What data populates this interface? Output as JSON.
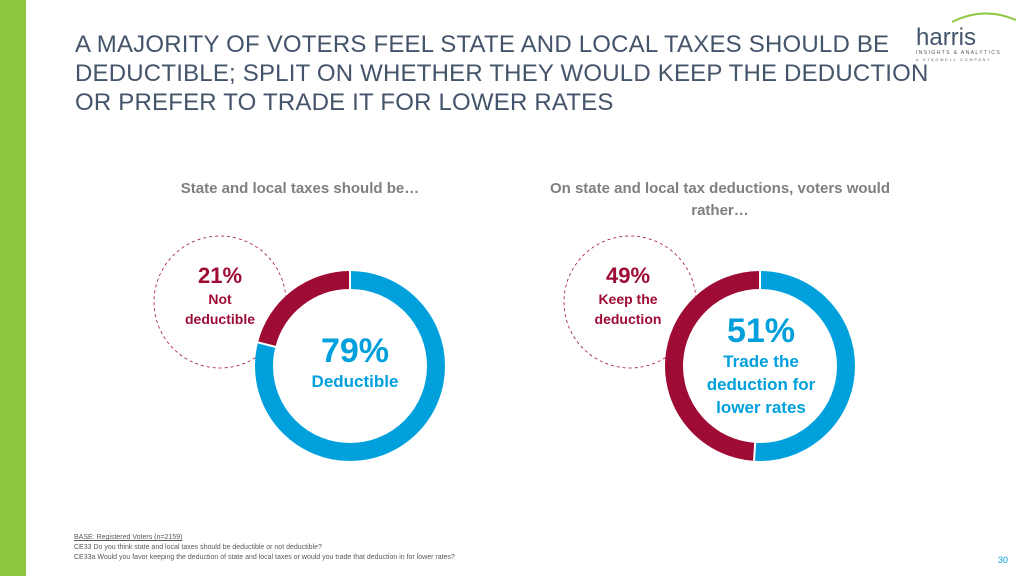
{
  "slide": {
    "title": "A MAJORITY OF VOTERS FEEL STATE AND LOCAL TAXES SHOULD BE DEDUCTIBLE; SPLIT ON WHETHER THEY WOULD KEEP THE DEDUCTION OR PREFER TO TRADE IT FOR LOWER RATES",
    "page_number": "30",
    "colors": {
      "accent_bar": "#8dc63f",
      "title": "#44546a",
      "minor": "#9e0b34",
      "major": "#00a0dc",
      "logo_green": "#8dc63f"
    }
  },
  "logo": {
    "name": "harris",
    "tagline": "INSIGHTS & ANALYTICS",
    "subline": "A STAGWELL COMPANY"
  },
  "chart_data": [
    {
      "type": "pie",
      "title": "State and local taxes should be…",
      "labels": [
        "Not deductible",
        "Deductible"
      ],
      "values": [
        21,
        79
      ],
      "value_labels": [
        "21%",
        "79%"
      ],
      "colors": [
        "#9e0b34",
        "#00a0dc"
      ]
    },
    {
      "type": "pie",
      "title": "On state and local tax deductions, voters would rather…",
      "labels": [
        "Keep the deduction",
        "Trade the deduction for lower rates"
      ],
      "values": [
        49,
        51
      ],
      "value_labels": [
        "49%",
        "51%"
      ],
      "colors": [
        "#9e0b34",
        "#00a0dc"
      ]
    }
  ],
  "footer": {
    "base": "BASE: Registered Voters (n=2159)",
    "q1": "CE33 Do you think state and local taxes should be deductible or not deductible?",
    "q2": "CE33a Would you favor keeping the deduction of state and local taxes or would you trade that deduction in for lower rates?"
  }
}
